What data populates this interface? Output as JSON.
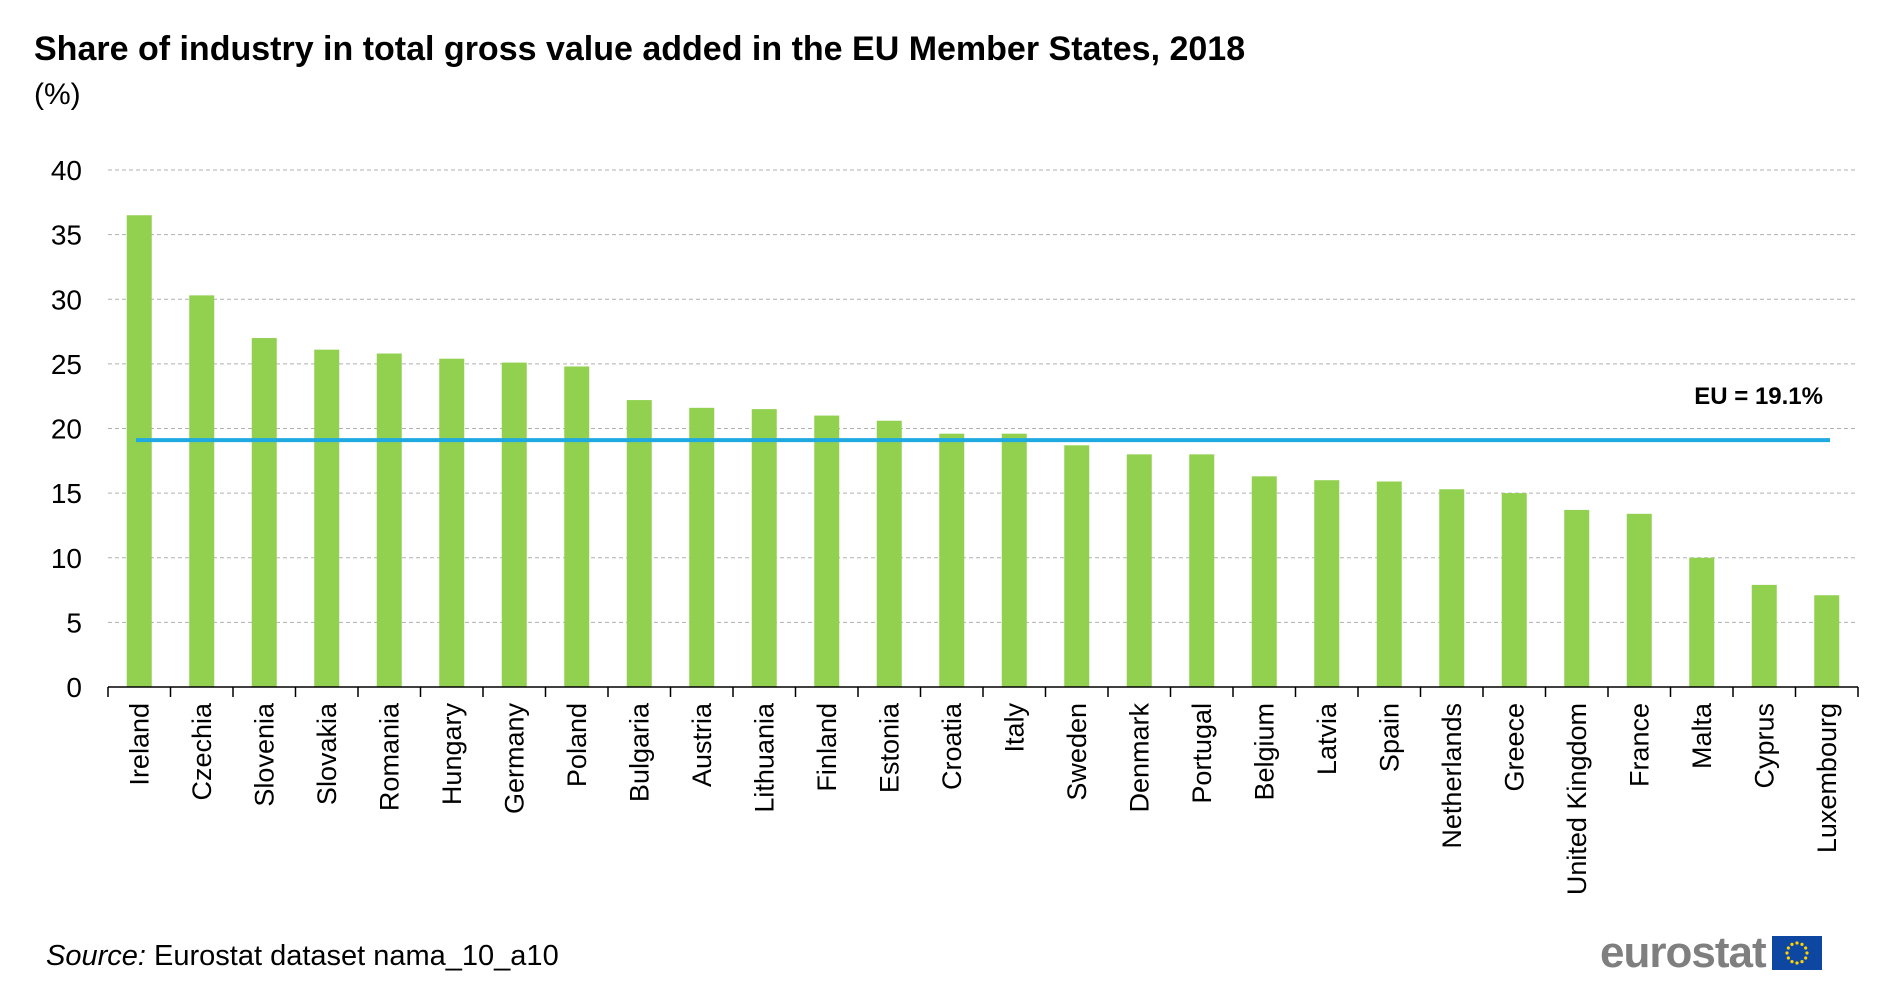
{
  "title": "Share of industry in total gross value added in the EU Member States, 2018",
  "subtitle": "(%)",
  "source_label": "Source:",
  "source_text": " Eurostat dataset nama_10_a10",
  "logo_text": "eurostat",
  "colors": {
    "bar": "#92d050",
    "reference_line": "#1fa9e1",
    "grid": "#b0b0b0"
  },
  "chart_data": {
    "type": "bar",
    "title": "Share of industry in total gross value added in the EU Member States, 2018",
    "ylabel": "(%)",
    "xlabel": "",
    "ylim": [
      0,
      40
    ],
    "yticks": [
      0,
      5,
      10,
      15,
      20,
      25,
      30,
      35,
      40
    ],
    "grid": true,
    "categories": [
      "Ireland",
      "Czechia",
      "Slovenia",
      "Slovakia",
      "Romania",
      "Hungary",
      "Germany",
      "Poland",
      "Bulgaria",
      "Austria",
      "Lithuania",
      "Finland",
      "Estonia",
      "Croatia",
      "Italy",
      "Sweden",
      "Denmark",
      "Portugal",
      "Belgium",
      "Latvia",
      "Spain",
      "Netherlands",
      "Greece",
      "United Kingdom",
      "France",
      "Malta",
      "Cyprus",
      "Luxembourg"
    ],
    "values": [
      36.5,
      30.3,
      27.0,
      26.1,
      25.8,
      25.4,
      25.1,
      24.8,
      22.2,
      21.6,
      21.5,
      21.0,
      20.6,
      19.6,
      19.6,
      18.7,
      18.0,
      18.0,
      16.3,
      16.0,
      15.9,
      15.3,
      15.0,
      13.7,
      13.4,
      10.0,
      7.9,
      7.1
    ],
    "reference_line": {
      "value": 19.1,
      "label": "EU = 19.1%"
    }
  }
}
